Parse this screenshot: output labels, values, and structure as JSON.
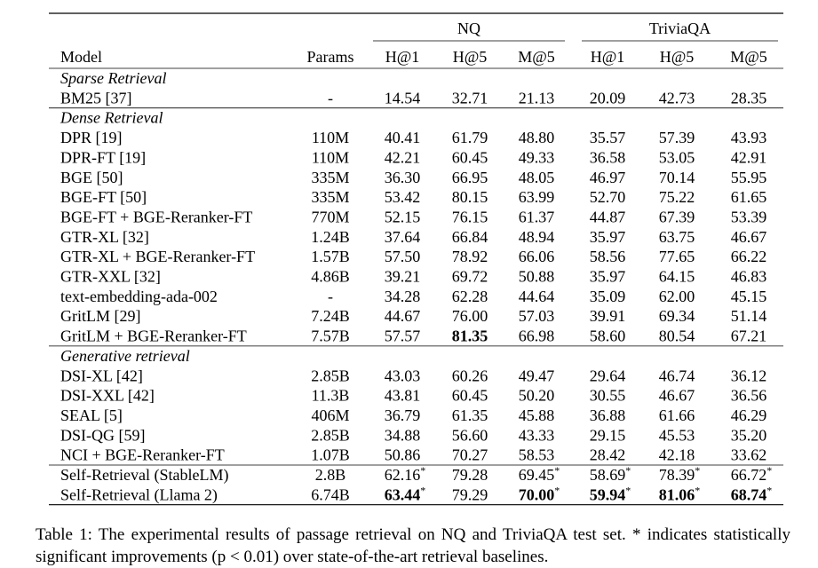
{
  "table": {
    "header": {
      "groups": [
        "NQ",
        "TriviaQA"
      ],
      "columns": [
        "Model",
        "Params",
        "H@1",
        "H@5",
        "M@5",
        "H@1",
        "H@5",
        "M@5"
      ]
    },
    "sections": [
      {
        "title": "Sparse Retrieval",
        "rows": [
          [
            "BM25 [37]",
            "-",
            "14.54",
            "32.71",
            "21.13",
            "20.09",
            "42.73",
            "28.35"
          ]
        ]
      },
      {
        "title": "Dense Retrieval",
        "rows": [
          [
            "DPR [19]",
            "110M",
            "40.41",
            "61.79",
            "48.80",
            "35.57",
            "57.39",
            "43.93"
          ],
          [
            "DPR-FT [19]",
            "110M",
            "42.21",
            "60.45",
            "49.33",
            "36.58",
            "53.05",
            "42.91"
          ],
          [
            "BGE [50]",
            "335M",
            "36.30",
            "66.95",
            "48.05",
            "46.97",
            "70.14",
            "55.95"
          ],
          [
            "BGE-FT [50]",
            "335M",
            "53.42",
            "80.15",
            "63.99",
            "52.70",
            "75.22",
            "61.65"
          ],
          [
            "BGE-FT + BGE-Reranker-FT",
            "770M",
            "52.15",
            "76.15",
            "61.37",
            "44.87",
            "67.39",
            "53.39"
          ],
          [
            "GTR-XL [32]",
            "1.24B",
            "37.64",
            "66.84",
            "48.94",
            "35.97",
            "63.75",
            "46.67"
          ],
          [
            "GTR-XL + BGE-Reranker-FT",
            "1.57B",
            "57.50",
            "78.92",
            "66.06",
            "58.56",
            "77.65",
            "66.22"
          ],
          [
            "GTR-XXL [32]",
            "4.86B",
            "39.21",
            "69.72",
            "50.88",
            "35.97",
            "64.15",
            "46.83"
          ],
          [
            "text-embedding-ada-002",
            "-",
            "34.28",
            "62.28",
            "44.64",
            "35.09",
            "62.00",
            "45.15"
          ],
          [
            "GritLM [29]",
            "7.24B",
            "44.67",
            "76.00",
            "57.03",
            "39.91",
            "69.34",
            "51.14"
          ],
          [
            "GritLM + BGE-Reranker-FT",
            "7.57B",
            "57.57",
            {
              "value": "81.35",
              "bold": true
            },
            "66.98",
            "58.60",
            "80.54",
            "67.21"
          ]
        ]
      },
      {
        "title": "Generative retrieval",
        "rows": [
          [
            "DSI-XL [42]",
            "2.85B",
            "43.03",
            "60.26",
            "49.47",
            "29.64",
            "46.74",
            "36.12"
          ],
          [
            "DSI-XXL [42]",
            "11.3B",
            "43.81",
            "60.45",
            "50.20",
            "30.55",
            "46.67",
            "36.56"
          ],
          [
            "SEAL [5]",
            "406M",
            "36.79",
            "61.35",
            "45.88",
            "36.88",
            "61.66",
            "46.29"
          ],
          [
            "DSI-QG [59]",
            "2.85B",
            "34.88",
            "56.60",
            "43.33",
            "29.15",
            "45.53",
            "35.20"
          ],
          [
            "NCI + BGE-Reranker-FT",
            "1.07B",
            "50.86",
            "70.27",
            "58.53",
            "28.42",
            "42.18",
            "33.62"
          ]
        ]
      },
      {
        "rows": [
          [
            "Self-Retrieval (StableLM)",
            "2.8B",
            {
              "value": "62.16",
              "mark": "*",
              "bold": false
            },
            "79.28",
            {
              "value": "69.45",
              "mark": "*",
              "bold": false
            },
            {
              "value": "58.69",
              "mark": "*",
              "bold": false
            },
            {
              "value": "78.39",
              "mark": "*",
              "bold": false
            },
            {
              "value": "66.72",
              "mark": "*",
              "bold": false
            }
          ],
          [
            "Self-Retrieval (Llama 2)",
            "6.74B",
            {
              "value": "63.44",
              "mark": "*",
              "bold": true
            },
            "79.29",
            {
              "value": "70.00",
              "mark": "*",
              "bold": true
            },
            {
              "value": "59.94",
              "mark": "*",
              "bold": true
            },
            {
              "value": "81.06",
              "mark": "*",
              "bold": true
            },
            {
              "value": "68.74",
              "mark": "*",
              "bold": true
            }
          ]
        ]
      }
    ]
  },
  "caption": "Table 1: The experimental results of passage retrieval on NQ and TriviaQA test set. * indicates statistically significant improvements (p < 0.01) over state-of-the-art retrieval baselines."
}
